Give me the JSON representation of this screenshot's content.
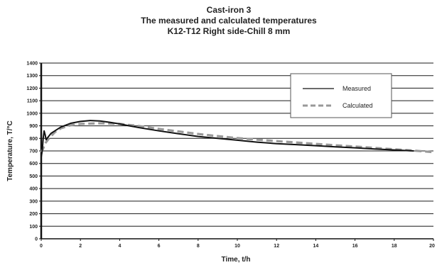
{
  "chart_data": {
    "type": "line",
    "title_lines": [
      "Cast-iron 3",
      "The measured and calculated temperatures",
      "K12-T12   Right side-Chill 8 mm"
    ],
    "xlabel": "Time, t/h",
    "ylabel": "Temperature, T/°C",
    "xlim": [
      0,
      20
    ],
    "ylim": [
      0,
      1400
    ],
    "x_ticks": [
      0,
      2,
      4,
      6,
      8,
      10,
      12,
      14,
      16,
      18,
      20
    ],
    "y_ticks": [
      0,
      100,
      200,
      300,
      400,
      500,
      600,
      700,
      800,
      900,
      1000,
      1100,
      1200,
      1300,
      1400
    ],
    "grid": "horizontal",
    "legend_position": "top-right",
    "series": [
      {
        "name": "Measured",
        "style": "solid",
        "color": "#111111",
        "points": [
          [
            0.0,
            650
          ],
          [
            0.05,
            700
          ],
          [
            0.1,
            800
          ],
          [
            0.15,
            860
          ],
          [
            0.2,
            830
          ],
          [
            0.25,
            790
          ],
          [
            0.3,
            800
          ],
          [
            0.5,
            840
          ],
          [
            1.0,
            890
          ],
          [
            1.5,
            920
          ],
          [
            2.0,
            935
          ],
          [
            2.5,
            942
          ],
          [
            3.0,
            938
          ],
          [
            3.5,
            928
          ],
          [
            4.0,
            915
          ],
          [
            4.5,
            900
          ],
          [
            5.0,
            885
          ],
          [
            6.0,
            860
          ],
          [
            7.0,
            837
          ],
          [
            8.0,
            815
          ],
          [
            9.0,
            800
          ],
          [
            10.0,
            785
          ],
          [
            11.0,
            770
          ],
          [
            12.0,
            758
          ],
          [
            13.0,
            750
          ],
          [
            14.0,
            742
          ],
          [
            15.0,
            733
          ],
          [
            16.0,
            725
          ],
          [
            17.0,
            716
          ],
          [
            18.0,
            708
          ],
          [
            19.0,
            700
          ]
        ]
      },
      {
        "name": "Calculated",
        "style": "dashed",
        "color": "#999999",
        "points": [
          [
            0.0,
            690
          ],
          [
            0.1,
            720
          ],
          [
            0.2,
            760
          ],
          [
            0.4,
            800
          ],
          [
            0.7,
            850
          ],
          [
            1.0,
            880
          ],
          [
            1.5,
            905
          ],
          [
            2.0,
            915
          ],
          [
            3.0,
            920
          ],
          [
            4.0,
            915
          ],
          [
            5.0,
            898
          ],
          [
            6.0,
            875
          ],
          [
            7.0,
            855
          ],
          [
            8.0,
            835
          ],
          [
            9.0,
            818
          ],
          [
            10.0,
            802
          ],
          [
            11.0,
            790
          ],
          [
            12.0,
            778
          ],
          [
            13.0,
            767
          ],
          [
            14.0,
            756
          ],
          [
            15.0,
            745
          ],
          [
            16.0,
            735
          ],
          [
            17.0,
            724
          ],
          [
            18.0,
            713
          ],
          [
            19.0,
            703
          ],
          [
            20.0,
            690
          ]
        ]
      }
    ]
  }
}
